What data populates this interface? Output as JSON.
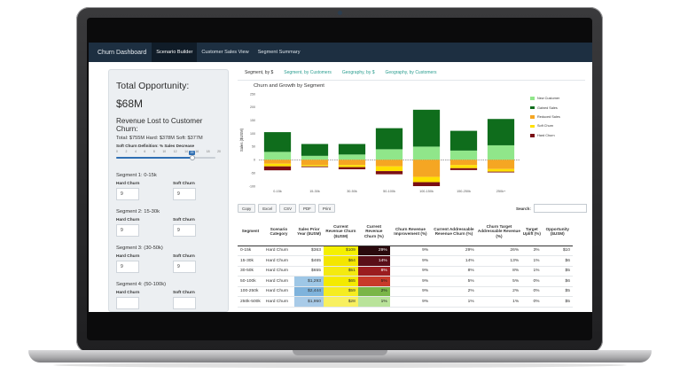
{
  "navbar": {
    "brand": "Churn Dashboard",
    "tabs": [
      {
        "label": "Scenario Builder",
        "active": true
      },
      {
        "label": "Customer Sales View",
        "active": false
      },
      {
        "label": "Segment Summary",
        "active": false
      }
    ]
  },
  "sidebar": {
    "total_title": "Total Opportunity:",
    "total_amount": "$68M",
    "lost_title": "Revenue Lost to Customer Churn:",
    "totals_line": "Total: $755M Hard: $378M Soft: $377M",
    "soft_def_label": "Soft Churn Definition: % Sales Decrease",
    "slider": {
      "value": 15,
      "min": 0,
      "max": 20,
      "scale": [
        "0",
        "2",
        "4",
        "6",
        "8",
        "10",
        "12",
        "14",
        "16",
        "18",
        "20"
      ]
    },
    "hard_label": "Hard Churn",
    "soft_label": "Soft Churn",
    "segments": [
      {
        "title": "Segment 1: 0-15k",
        "hard": "9",
        "soft": "9"
      },
      {
        "title": "Segment 2: 15-30k",
        "hard": "9",
        "soft": "9"
      },
      {
        "title": "Segment 3: (30-50k)",
        "hard": "9",
        "soft": "9"
      },
      {
        "title": "Segment 4: (50-100k)",
        "hard": "",
        "soft": ""
      }
    ]
  },
  "subtabs": [
    {
      "label": "Segment, by $",
      "active": true
    },
    {
      "label": "Segment, by Customers",
      "active": false
    },
    {
      "label": "Geography, by $",
      "active": false
    },
    {
      "label": "Geography, by Customers",
      "active": false
    }
  ],
  "chart_data": {
    "type": "bar",
    "title": "Churn and Growth by Segment",
    "ylabel": "Sales ($USM)",
    "xlabel": "",
    "ylim": [
      -100,
      250
    ],
    "yticks": [
      -100,
      -50,
      0,
      50,
      100,
      150,
      200,
      250
    ],
    "categories": [
      "0-15k",
      "15-30k",
      "30-50k",
      "50-100k",
      "100-150k",
      "150-250k",
      "250k+"
    ],
    "stacked": true,
    "series": [
      {
        "name": "New Customer",
        "color": "#90e68a",
        "values": [
          30,
          15,
          20,
          40,
          50,
          35,
          55
        ]
      },
      {
        "name": "Gained Sales",
        "color": "#0f6d1c",
        "values": [
          75,
          45,
          40,
          80,
          140,
          75,
          100
        ]
      },
      {
        "name": "Reduced Sales",
        "color": "#f5a623",
        "values": [
          -15,
          -20,
          -20,
          -25,
          -65,
          -20,
          -35
        ]
      },
      {
        "name": "Soft Churn",
        "color": "#ffe000",
        "values": [
          -10,
          -5,
          -8,
          -18,
          -20,
          -12,
          -10
        ]
      },
      {
        "name": "Hard Churn",
        "color": "#7a0f14",
        "values": [
          -15,
          -3,
          -8,
          -12,
          -15,
          -7,
          -3
        ]
      }
    ],
    "legend_position": "right",
    "grid": false
  },
  "buttons": [
    "Copy",
    "Excel",
    "CSV",
    "PDF",
    "Print"
  ],
  "search_label": "Search:",
  "table": {
    "headers": [
      "Segment",
      "Scenario Category",
      "Sales Prior Year ($USM)",
      "Current Revenue Churn ($USM)",
      "Current Revenue Churn (%)",
      "Churn Revenue Improvement (%)",
      "Current Addressable Revenue Churn (%)",
      "Churn Target Addressable Revenue (%)",
      "Target Uplift (%)",
      "Opportunity ($USM)"
    ],
    "rows": [
      {
        "cells": [
          "0-15k",
          "Hard Churn",
          "$363",
          "$109",
          "29%",
          "9%",
          "29%",
          "26%",
          "3%",
          "$10"
        ],
        "sales_color": "#ffffff",
        "churn_color": "#f5f000",
        "pct_color": "#2a0a0d",
        "pct_text": "#ffffff"
      },
      {
        "cells": [
          "15-30k",
          "Hard Churn",
          "$465",
          "$64",
          "14%",
          "9%",
          "14%",
          "13%",
          "1%",
          "$6"
        ],
        "sales_color": "#ffffff",
        "churn_color": "#f4e600",
        "pct_color": "#5a0f18",
        "pct_text": "#ffffff"
      },
      {
        "cells": [
          "30-50k",
          "Hard Churn",
          "$655",
          "$51",
          "8%",
          "9%",
          "8%",
          "8%",
          "1%",
          "$5"
        ],
        "sales_color": "#ffffff",
        "churn_color": "#f4ea10",
        "pct_color": "#9b1c1f",
        "pct_text": "#ffffff"
      },
      {
        "cells": [
          "50-100k",
          "Hard Churn",
          "$1,293",
          "$65",
          "5%",
          "9%",
          "5%",
          "5%",
          "0%",
          "$6"
        ],
        "sales_color": "#9ec7e6",
        "churn_color": "#f4ea00",
        "pct_color": "#c83a2a",
        "pct_text": "#1a1a1a"
      },
      {
        "cells": [
          "100-250k",
          "Hard Churn",
          "$2,444",
          "$59",
          "2%",
          "9%",
          "2%",
          "2%",
          "0%",
          "$5"
        ],
        "sales_color": "#7fb3dc",
        "churn_color": "#f5ec20",
        "pct_color": "#7ab648",
        "pct_text": "#1a1a1a"
      },
      {
        "cells": [
          "250k-500k",
          "Hard Churn",
          "$1,950",
          "$28",
          "1%",
          "9%",
          "1%",
          "1%",
          "0%",
          "$5"
        ],
        "sales_color": "#a9cbe8",
        "churn_color": "#f8f060",
        "pct_color": "#b9e39a",
        "pct_text": "#1a1a1a"
      }
    ]
  }
}
